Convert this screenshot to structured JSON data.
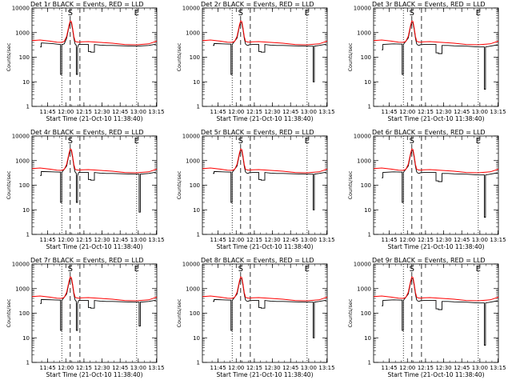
{
  "chart_data": {
    "type": "line",
    "ylabel": "Counts/sec",
    "xlabel": "Start Time (21-Oct-10 11:38:40)",
    "xlim": [
      -6.67,
      96.67
    ],
    "ylim": [
      1,
      10000
    ],
    "y_scale": "log",
    "grid": false,
    "x_ticks": [
      {
        "value": 6.33,
        "label": "11:45"
      },
      {
        "value": 21.33,
        "label": "12:00"
      },
      {
        "value": 36.33,
        "label": "12:15"
      },
      {
        "value": 51.33,
        "label": "12:30"
      },
      {
        "value": 66.33,
        "label": "12:45"
      },
      {
        "value": 81.33,
        "label": "13:00"
      },
      {
        "value": 96.33,
        "label": "13:15"
      }
    ],
    "y_ticks": [
      {
        "value": 1,
        "label": "1"
      },
      {
        "value": 10,
        "label": "10"
      },
      {
        "value": 100,
        "label": "100"
      },
      {
        "value": 1000,
        "label": "1000"
      },
      {
        "value": 10000,
        "label": "10000"
      }
    ],
    "markers": [
      {
        "x": 18,
        "label": "",
        "style": "dotted"
      },
      {
        "x": 25,
        "label": "S",
        "style": "dashed"
      },
      {
        "x": 33,
        "label": "",
        "style": "dashed"
      },
      {
        "x": 80,
        "label": "E",
        "style": "dotted"
      }
    ],
    "red_curve": {
      "name": "LLD",
      "x": [
        -6.67,
        0,
        8,
        14,
        18,
        20,
        22,
        24,
        25,
        26,
        27,
        28,
        29,
        30,
        32,
        35,
        40,
        50,
        60,
        70,
        80,
        90,
        96.67
      ],
      "y": [
        470,
        500,
        450,
        410,
        400,
        440,
        700,
        2000,
        3000,
        2800,
        1500,
        700,
        450,
        420,
        410,
        420,
        430,
        400,
        370,
        330,
        320,
        350,
        450
      ]
    },
    "panels": [
      {
        "title": "Det 1r BLACK = Events, RED = LLD",
        "black_x": [
          0,
          1,
          1,
          10,
          14,
          17,
          17,
          18,
          18,
          20,
          22,
          24,
          25,
          26,
          27,
          28,
          29,
          30,
          30,
          31,
          31,
          32,
          35,
          40,
          40,
          42,
          42,
          45,
          45,
          50,
          55,
          60,
          70,
          78,
          80,
          90,
          96
        ],
        "black_y": [
          260,
          260,
          380,
          360,
          340,
          330,
          20,
          20,
          320,
          350,
          600,
          1800,
          2600,
          2400,
          1300,
          600,
          350,
          300,
          20,
          20,
          250,
          330,
          330,
          330,
          170,
          170,
          160,
          160,
          330,
          310,
          300,
          300,
          290,
          280,
          280,
          300,
          340
        ]
      },
      {
        "title": "Det 2r BLACK = Events, RED = LLD",
        "black_x": [
          2,
          3,
          3,
          10,
          17,
          17,
          18,
          18,
          22,
          24,
          25,
          26,
          27,
          28,
          29,
          30,
          31,
          32,
          35,
          40,
          40,
          42,
          42,
          45,
          45,
          50,
          55,
          60,
          70,
          80,
          85,
          85,
          86,
          86,
          90,
          96
        ],
        "black_y": [
          300,
          300,
          360,
          350,
          340,
          20,
          20,
          330,
          600,
          1800,
          2600,
          2400,
          1300,
          600,
          350,
          310,
          300,
          320,
          330,
          330,
          170,
          170,
          160,
          160,
          330,
          310,
          300,
          300,
          290,
          280,
          280,
          10,
          10,
          280,
          300,
          340
        ]
      },
      {
        "title": "Det 3r BLACK = Events, RED = LLD",
        "black_x": [
          0,
          1,
          1,
          10,
          17,
          17,
          18,
          18,
          22,
          24,
          25,
          26,
          27,
          28,
          29,
          30,
          31,
          32,
          35,
          45,
          45,
          47,
          47,
          50,
          50,
          55,
          60,
          70,
          80,
          85,
          85,
          86,
          86,
          90,
          96
        ],
        "black_y": [
          200,
          200,
          330,
          350,
          340,
          20,
          20,
          330,
          600,
          1800,
          2600,
          2400,
          1300,
          600,
          350,
          310,
          300,
          320,
          330,
          330,
          150,
          150,
          140,
          140,
          300,
          300,
          290,
          280,
          260,
          260,
          5,
          5,
          260,
          280,
          320
        ]
      },
      {
        "title": "Det 4r BLACK = Events, RED = LLD",
        "black_x": [
          0,
          1,
          1,
          10,
          17,
          17,
          18,
          18,
          22,
          24,
          25,
          26,
          27,
          28,
          29,
          30,
          30,
          31,
          31,
          32,
          35,
          40,
          40,
          42,
          42,
          45,
          45,
          50,
          55,
          60,
          70,
          78,
          80,
          82,
          82,
          83,
          83,
          90,
          96
        ],
        "black_y": [
          250,
          250,
          360,
          350,
          340,
          20,
          20,
          330,
          600,
          1800,
          2600,
          2400,
          1300,
          600,
          350,
          300,
          20,
          20,
          250,
          330,
          330,
          330,
          170,
          170,
          160,
          160,
          330,
          310,
          300,
          300,
          290,
          280,
          280,
          280,
          8,
          8,
          280,
          300,
          340
        ]
      },
      {
        "title": "Det 5r BLACK = Events, RED = LLD",
        "black_x": [
          2,
          3,
          3,
          10,
          17,
          17,
          18,
          18,
          22,
          24,
          25,
          26,
          27,
          28,
          29,
          30,
          31,
          32,
          35,
          40,
          40,
          42,
          42,
          45,
          45,
          50,
          55,
          60,
          70,
          80,
          85,
          85,
          86,
          86,
          90,
          96
        ],
        "black_y": [
          300,
          300,
          360,
          350,
          340,
          20,
          20,
          330,
          600,
          1800,
          2600,
          2400,
          1300,
          600,
          350,
          310,
          300,
          320,
          330,
          330,
          170,
          170,
          160,
          160,
          330,
          310,
          300,
          300,
          290,
          280,
          280,
          10,
          10,
          280,
          300,
          340
        ]
      },
      {
        "title": "Det 6r BLACK = Events, RED = LLD",
        "black_x": [
          0,
          1,
          1,
          10,
          17,
          17,
          18,
          18,
          22,
          24,
          25,
          26,
          27,
          28,
          29,
          30,
          31,
          32,
          35,
          45,
          45,
          47,
          47,
          50,
          50,
          55,
          60,
          70,
          80,
          85,
          85,
          86,
          86,
          90,
          96
        ],
        "black_y": [
          200,
          200,
          330,
          350,
          340,
          20,
          20,
          330,
          600,
          1800,
          2600,
          2400,
          1300,
          600,
          350,
          310,
          300,
          320,
          330,
          330,
          150,
          150,
          140,
          140,
          300,
          300,
          290,
          280,
          260,
          260,
          5,
          5,
          260,
          280,
          320
        ]
      },
      {
        "title": "Det 7r BLACK = Events, RED = LLD",
        "black_x": [
          0,
          1,
          1,
          10,
          17,
          17,
          18,
          18,
          22,
          24,
          25,
          26,
          27,
          28,
          29,
          30,
          30,
          31,
          31,
          32,
          35,
          40,
          40,
          42,
          42,
          45,
          45,
          50,
          55,
          60,
          70,
          78,
          80,
          82,
          82,
          83,
          83,
          90,
          96
        ],
        "black_y": [
          250,
          250,
          360,
          350,
          340,
          20,
          20,
          330,
          600,
          1800,
          2600,
          2400,
          1300,
          600,
          350,
          300,
          20,
          20,
          250,
          330,
          330,
          330,
          170,
          170,
          160,
          160,
          330,
          310,
          300,
          300,
          290,
          280,
          280,
          280,
          30,
          30,
          280,
          300,
          340
        ]
      },
      {
        "title": "Det 8r BLACK = Events, RED = LLD",
        "black_x": [
          2,
          3,
          3,
          10,
          17,
          17,
          18,
          18,
          22,
          24,
          25,
          26,
          27,
          28,
          29,
          30,
          31,
          32,
          35,
          40,
          40,
          42,
          42,
          45,
          45,
          50,
          55,
          60,
          70,
          80,
          85,
          85,
          86,
          86,
          90,
          96
        ],
        "black_y": [
          300,
          300,
          360,
          350,
          340,
          20,
          20,
          330,
          600,
          1800,
          2600,
          2400,
          1300,
          600,
          350,
          310,
          300,
          320,
          330,
          330,
          170,
          170,
          160,
          160,
          330,
          310,
          300,
          300,
          290,
          280,
          280,
          10,
          10,
          280,
          300,
          340
        ]
      },
      {
        "title": "Det 9r BLACK = Events, RED = LLD",
        "black_x": [
          0,
          1,
          1,
          10,
          17,
          17,
          18,
          18,
          22,
          24,
          25,
          26,
          27,
          28,
          29,
          30,
          31,
          32,
          35,
          45,
          45,
          47,
          47,
          50,
          50,
          55,
          60,
          70,
          80,
          85,
          85,
          86,
          86,
          90,
          96
        ],
        "black_y": [
          200,
          200,
          330,
          350,
          340,
          20,
          20,
          330,
          600,
          1800,
          2600,
          2400,
          1300,
          600,
          350,
          310,
          300,
          320,
          330,
          330,
          150,
          150,
          140,
          140,
          300,
          300,
          290,
          280,
          260,
          260,
          5,
          5,
          260,
          280,
          320
        ]
      }
    ]
  },
  "colors": {
    "events": "#000000",
    "lld": "#ff0000"
  }
}
